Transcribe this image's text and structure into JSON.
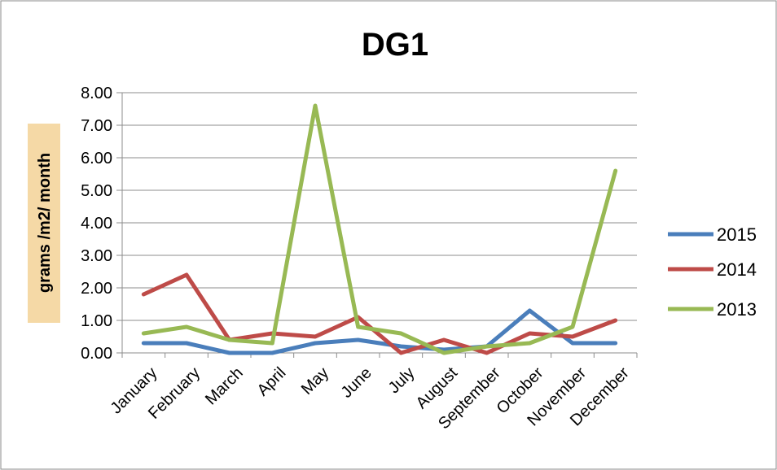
{
  "chart_data": {
    "type": "line",
    "title": "DG1",
    "ylabel": "grams /m2/ month",
    "xlabel": "",
    "ylim": [
      0,
      8
    ],
    "yticks": [
      "0.00",
      "1.00",
      "2.00",
      "3.00",
      "4.00",
      "5.00",
      "6.00",
      "7.00",
      "8.00"
    ],
    "grid": true,
    "legend_position": "right",
    "categories": [
      "January",
      "February",
      "March",
      "April",
      "May",
      "June",
      "July",
      "August",
      "September",
      "October",
      "November",
      "December"
    ],
    "series": [
      {
        "name": "2015",
        "color": "#4a7ebb",
        "values": [
          0.3,
          0.3,
          0.0,
          0.0,
          0.3,
          0.4,
          0.2,
          0.1,
          0.2,
          1.3,
          0.3,
          0.3
        ]
      },
      {
        "name": "2014",
        "color": "#be4b48",
        "values": [
          1.8,
          2.4,
          0.4,
          0.6,
          0.5,
          1.1,
          0.0,
          0.4,
          0.0,
          0.6,
          0.5,
          1.0
        ]
      },
      {
        "name": "2013",
        "color": "#98b954",
        "values": [
          0.6,
          0.8,
          0.4,
          0.3,
          7.6,
          0.8,
          0.6,
          0.0,
          0.2,
          0.3,
          0.8,
          5.6
        ]
      }
    ]
  }
}
